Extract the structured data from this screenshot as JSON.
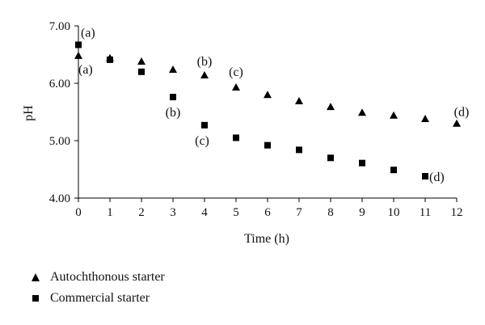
{
  "chart_data": {
    "type": "scatter",
    "xlabel": "Time (h)",
    "ylabel": "pH",
    "xlim": [
      0,
      12
    ],
    "ylim": [
      4.0,
      7.0
    ],
    "x_ticks": [
      0,
      1,
      2,
      3,
      4,
      5,
      6,
      7,
      8,
      9,
      10,
      11,
      12
    ],
    "y_ticks": [
      "4.00",
      "5.00",
      "6.00",
      "7.00"
    ],
    "y_tick_values": [
      4.0,
      5.0,
      6.0,
      7.0
    ],
    "grid": false,
    "legend_position": "bottom-left",
    "series": [
      {
        "name": "Autochthonous starter",
        "marker": "triangle",
        "x": [
          0,
          1,
          2,
          3,
          4,
          5,
          6,
          7,
          8,
          9,
          10,
          11,
          12
        ],
        "y": [
          6.48,
          6.44,
          6.38,
          6.24,
          6.14,
          5.93,
          5.8,
          5.69,
          5.59,
          5.49,
          5.44,
          5.38,
          5.3
        ]
      },
      {
        "name": "Commercial starter",
        "marker": "square",
        "x": [
          0,
          1,
          2,
          3,
          4,
          5,
          6,
          7,
          8,
          9,
          10,
          11
        ],
        "y": [
          6.67,
          6.41,
          6.2,
          5.76,
          5.27,
          5.05,
          4.92,
          4.84,
          4.7,
          4.61,
          4.49,
          4.38
        ]
      }
    ],
    "annotations": [
      {
        "text": "(a)",
        "x": 0,
        "y": 6.67,
        "series": "Commercial starter"
      },
      {
        "text": "(a)",
        "x": 0,
        "y": 6.48,
        "series": "Autochthonous starter"
      },
      {
        "text": "(b)",
        "x": 4,
        "y": 6.14,
        "series": "Autochthonous starter"
      },
      {
        "text": "(c)",
        "x": 5,
        "y": 5.93,
        "series": "Autochthonous starter"
      },
      {
        "text": "(b)",
        "x": 3,
        "y": 5.76,
        "series": "Commercial starter"
      },
      {
        "text": "(c)",
        "x": 4,
        "y": 5.27,
        "series": "Commercial starter"
      },
      {
        "text": "(d)",
        "x": 12,
        "y": 5.3,
        "series": "Autochthonous starter"
      },
      {
        "text": "(d)",
        "x": 11,
        "y": 4.38,
        "series": "Commercial starter"
      }
    ]
  },
  "colors": {
    "marker": "#000000",
    "axis": "#000000"
  }
}
